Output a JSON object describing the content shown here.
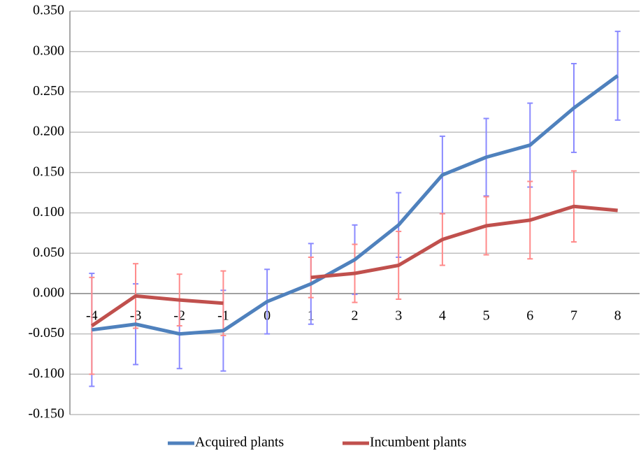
{
  "chart_data": {
    "type": "line",
    "categories": [
      "-4",
      "-3",
      "-2",
      "-1",
      "0",
      "1",
      "2",
      "3",
      "4",
      "5",
      "6",
      "7",
      "8"
    ],
    "series": [
      {
        "name": "Acquired plants",
        "color": "#4f81bd",
        "error_color": "#8a8aff",
        "values": [
          -0.045,
          -0.038,
          -0.05,
          -0.046,
          -0.01,
          0.012,
          0.042,
          0.085,
          0.147,
          0.169,
          0.184,
          0.23,
          0.27
        ],
        "errors": [
          0.07,
          0.05,
          0.043,
          0.05,
          0.04,
          0.05,
          0.043,
          0.04,
          0.048,
          0.048,
          0.052,
          0.055,
          0.055
        ]
      },
      {
        "name": "Incumbent plants",
        "color": "#c0504d",
        "error_color": "#ff8a8a",
        "values": [
          -0.04,
          -0.003,
          -0.008,
          -0.012,
          null,
          0.02,
          0.025,
          0.035,
          0.067,
          0.084,
          0.091,
          0.108,
          0.103
        ],
        "errors": [
          0.06,
          0.04,
          0.032,
          0.04,
          null,
          0.025,
          0.036,
          0.042,
          0.032,
          0.036,
          0.048,
          0.044,
          null
        ]
      }
    ],
    "ylim": [
      -0.15,
      0.35
    ],
    "yticks": [
      {
        "value": -0.15,
        "label": "-0.150"
      },
      {
        "value": -0.1,
        "label": "-0.100"
      },
      {
        "value": -0.05,
        "label": "-0.050"
      },
      {
        "value": 0,
        "label": "0.000"
      },
      {
        "value": 0.05,
        "label": "0.050"
      },
      {
        "value": 0.1,
        "label": "0.100"
      },
      {
        "value": 0.15,
        "label": "0.150"
      },
      {
        "value": 0.2,
        "label": "0.200"
      },
      {
        "value": 0.25,
        "label": "0.250"
      },
      {
        "value": 0.3,
        "label": "0.300"
      },
      {
        "value": 0.35,
        "label": "0.350"
      }
    ],
    "grid": true,
    "legend": "bottom"
  }
}
